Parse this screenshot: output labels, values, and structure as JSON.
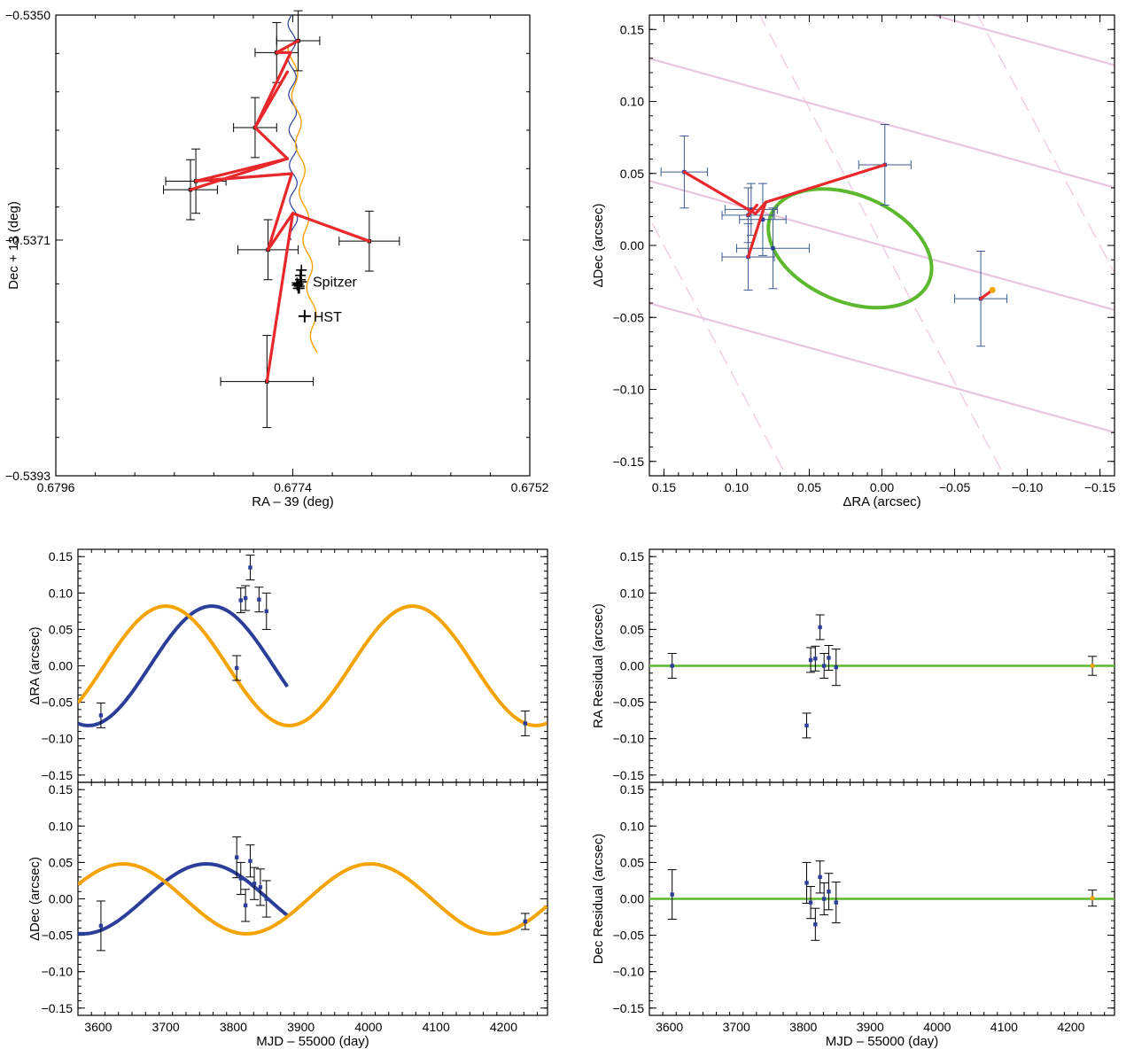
{
  "colors": {
    "red": "#e8282a",
    "blue": "#2b3f9a",
    "orange": "#f5a300",
    "green": "#5cb82e",
    "pink": "#e9c6df",
    "errbar": "#000000",
    "errbar_blue": "#3c5a8f"
  },
  "chart_data": [
    {
      "id": "sky-track",
      "type": "scatter",
      "xlabel": "RA – 39 (deg)",
      "ylabel": "Dec + 13 (deg)",
      "xlim": [
        0.6796,
        0.6752
      ],
      "ylim": [
        -0.5393,
        -0.535
      ],
      "xticks": [
        0.6796,
        0.6774,
        0.6752
      ],
      "xtick_labels": [
        "0.6796",
        "0.6774",
        "0.6752"
      ],
      "yticks": [
        -0.5393,
        -0.5371,
        -0.535
      ],
      "ytick_labels": [
        "−0.5393",
        "−0.5371",
        "−0.5350"
      ],
      "points": [
        {
          "x": 0.67755,
          "y": -0.53535,
          "xerr": 0.0002,
          "yerr": 0.00028
        },
        {
          "x": 0.67735,
          "y": -0.53524,
          "xerr": 0.0002,
          "yerr": 0.00028
        },
        {
          "x": 0.67775,
          "y": -0.53605,
          "xerr": 0.0002,
          "yerr": 0.00028
        },
        {
          "x": 0.6783,
          "y": -0.53655,
          "xerr": 0.00028,
          "yerr": 0.0003
        },
        {
          "x": 0.67835,
          "y": -0.53663,
          "xerr": 0.00025,
          "yerr": 0.00028
        },
        {
          "x": 0.67763,
          "y": -0.53719,
          "xerr": 0.00028,
          "yerr": 0.00028
        },
        {
          "x": 0.67669,
          "y": -0.53711,
          "xerr": 0.00028,
          "yerr": 0.00028
        },
        {
          "x": 0.67764,
          "y": -0.53842,
          "xerr": 0.00043,
          "yerr": 0.00043
        }
      ],
      "red_segments": [
        [
          [
            0.67755,
            -0.53535
          ],
          [
            0.67735,
            -0.53524
          ]
        ],
        [
          [
            0.67755,
            -0.53535
          ],
          [
            0.67742,
            -0.53535
          ]
        ],
        [
          [
            0.67742,
            -0.53535
          ],
          [
            0.67775,
            -0.53605
          ]
        ],
        [
          [
            0.67775,
            -0.53605
          ],
          [
            0.67745,
            -0.53553
          ]
        ],
        [
          [
            0.67775,
            -0.53605
          ],
          [
            0.67745,
            -0.53634
          ]
        ],
        [
          [
            0.67745,
            -0.53634
          ],
          [
            0.6783,
            -0.53655
          ]
        ],
        [
          [
            0.67745,
            -0.53634
          ],
          [
            0.67835,
            -0.53663
          ]
        ],
        [
          [
            0.6783,
            -0.53655
          ],
          [
            0.67741,
            -0.53648
          ]
        ],
        [
          [
            0.67741,
            -0.53648
          ],
          [
            0.67763,
            -0.53719
          ]
        ],
        [
          [
            0.67763,
            -0.53719
          ],
          [
            0.6774,
            -0.53685
          ]
        ],
        [
          [
            0.6774,
            -0.53685
          ],
          [
            0.67669,
            -0.53711
          ]
        ],
        [
          [
            0.6774,
            -0.53685
          ],
          [
            0.67764,
            -0.53842
          ]
        ]
      ],
      "spitzer_points": [
        {
          "x": 0.67733,
          "y": -0.53747
        },
        {
          "x": 0.67734,
          "y": -0.53755
        },
        {
          "x": 0.67735,
          "y": -0.53751
        },
        {
          "x": 0.67736,
          "y": -0.5375
        },
        {
          "x": 0.67734,
          "y": -0.53753
        },
        {
          "x": 0.67732,
          "y": -0.53749
        },
        {
          "x": 0.67733,
          "y": -0.53743
        },
        {
          "x": 0.67732,
          "y": -0.53738
        },
        {
          "x": 0.67735,
          "y": -0.53755
        },
        {
          "x": 0.67736,
          "y": -0.53752
        }
      ],
      "hst_point": {
        "x": 0.67729,
        "y": -0.53781
      },
      "annotations": [
        "Spitzer",
        "HST"
      ]
    },
    {
      "id": "orbit",
      "type": "scatter",
      "xlabel": "ΔRA (arcsec)",
      "ylabel": "ΔDec (arcsec)",
      "xlim": [
        0.16,
        -0.16
      ],
      "ylim": [
        -0.16,
        0.16
      ],
      "xticks": [
        0.15,
        0.1,
        0.05,
        0.0,
        -0.05,
        -0.1,
        -0.15
      ],
      "xtick_labels": [
        "0.15",
        "0.10",
        "0.05",
        "0.00",
        "−0.05",
        "−0.10",
        "−0.15"
      ],
      "yticks": [
        0.15,
        0.1,
        0.05,
        0.0,
        -0.05,
        -0.1,
        -0.15
      ],
      "ytick_labels": [
        "0.15",
        "0.10",
        "0.05",
        "0.00",
        "−0.05",
        "−0.10",
        "−0.15"
      ],
      "points": [
        {
          "x": 0.136,
          "y": 0.051,
          "xerr": 0.016,
          "yerr": 0.025
        },
        {
          "x": 0.092,
          "y": 0.021,
          "xerr": 0.018,
          "yerr": 0.019
        },
        {
          "x": 0.09,
          "y": 0.025,
          "xerr": 0.018,
          "yerr": 0.018
        },
        {
          "x": 0.082,
          "y": 0.018,
          "xerr": 0.016,
          "yerr": 0.025
        },
        {
          "x": 0.092,
          "y": -0.008,
          "xerr": 0.018,
          "yerr": 0.023
        },
        {
          "x": 0.075,
          "y": -0.002,
          "xerr": 0.025,
          "yerr": 0.028
        },
        {
          "x": -0.002,
          "y": 0.056,
          "xerr": 0.018,
          "yerr": 0.028
        },
        {
          "x": -0.068,
          "y": -0.037,
          "xerr": 0.018,
          "yerr": 0.033
        }
      ],
      "red_segments": [
        [
          [
            0.136,
            0.051
          ],
          [
            0.087,
            0.022
          ]
        ],
        [
          [
            0.087,
            0.022
          ],
          [
            0.08,
            0.03
          ]
        ],
        [
          [
            0.08,
            0.03
          ],
          [
            -0.002,
            0.056
          ]
        ],
        [
          [
            0.08,
            0.03
          ],
          [
            0.092,
            -0.008
          ]
        ],
        [
          [
            0.092,
            0.021
          ],
          [
            0.086,
            0.028
          ]
        ],
        [
          [
            -0.068,
            -0.037
          ],
          [
            -0.076,
            -0.031
          ]
        ]
      ],
      "ellipse": {
        "center": [
          0.022,
          -0.002
        ],
        "semi_axes": [
          0.059,
          0.037
        ],
        "rotation_deg": 23
      },
      "orange_point": {
        "x": -0.076,
        "y": -0.031
      },
      "pink_lines_intercepts": [
        -0.085,
        0.0,
        0.085,
        0.17
      ],
      "pink_lines_slope": 0.28
    },
    {
      "id": "ra-vs-time",
      "type": "line",
      "xlabel": "",
      "ylabel": "ΔRA (arcsec)",
      "xlim": [
        3570,
        4265
      ],
      "ylim": [
        -0.16,
        0.16
      ],
      "yticks": [
        0.15,
        0.1,
        0.05,
        0.0,
        -0.05,
        -0.1,
        -0.15
      ],
      "ytick_labels": [
        "0.15",
        "0.10",
        "0.05",
        "0.00",
        "−0.05",
        "−0.10",
        "−0.15"
      ],
      "points": [
        {
          "x": 3604,
          "y": -0.068,
          "yerr": 0.017
        },
        {
          "x": 3805,
          "y": -0.003,
          "yerr": 0.017
        },
        {
          "x": 3811,
          "y": 0.09,
          "yerr": 0.017
        },
        {
          "x": 3818,
          "y": 0.093,
          "yerr": 0.017
        },
        {
          "x": 3825,
          "y": 0.135,
          "yerr": 0.017
        },
        {
          "x": 3838,
          "y": 0.091,
          "yerr": 0.017
        },
        {
          "x": 3849,
          "y": 0.075,
          "yerr": 0.025
        },
        {
          "x": 4232,
          "y": -0.079,
          "yerr": 0.017
        }
      ],
      "series": [
        {
          "name": "blue model",
          "amplitude": 0.082,
          "period": 365.25,
          "phase_peak": 3768,
          "range": [
            3570,
            3880
          ]
        },
        {
          "name": "orange model",
          "amplitude": 0.082,
          "period": 365.25,
          "phase_peak": 3700,
          "range": [
            3570,
            4265
          ]
        }
      ]
    },
    {
      "id": "dec-vs-time",
      "type": "line",
      "xlabel": "MJD – 55000 (day)",
      "ylabel": "ΔDec (arcsec)",
      "xlim": [
        3570,
        4265
      ],
      "ylim": [
        -0.16,
        0.16
      ],
      "xticks": [
        3600,
        3700,
        3800,
        3900,
        4000,
        4100,
        4200
      ],
      "xtick_labels": [
        "3600",
        "3700",
        "3800",
        "3900",
        "4000",
        "4100",
        "4200"
      ],
      "yticks": [
        0.15,
        0.1,
        0.05,
        0.0,
        -0.05,
        -0.1,
        -0.15
      ],
      "ytick_labels": [
        "0.15",
        "0.10",
        "0.05",
        "0.00",
        "−0.05",
        "−0.10",
        "−0.15"
      ],
      "points": [
        {
          "x": 3604,
          "y": -0.037,
          "yerr": 0.034
        },
        {
          "x": 3805,
          "y": 0.057,
          "yerr": 0.028
        },
        {
          "x": 3811,
          "y": 0.028,
          "yerr": 0.022
        },
        {
          "x": 3818,
          "y": -0.009,
          "yerr": 0.022
        },
        {
          "x": 3825,
          "y": 0.052,
          "yerr": 0.022
        },
        {
          "x": 3831,
          "y": 0.021,
          "yerr": 0.022
        },
        {
          "x": 3840,
          "y": 0.016,
          "yerr": 0.025
        },
        {
          "x": 3849,
          "y": 0.0,
          "yerr": 0.025
        },
        {
          "x": 4232,
          "y": -0.031,
          "yerr": 0.011
        }
      ],
      "series": [
        {
          "name": "blue model",
          "amplitude": 0.048,
          "period": 365.25,
          "phase_peak": 3760,
          "range": [
            3570,
            3880
          ]
        },
        {
          "name": "orange model",
          "amplitude": 0.048,
          "period": 365.25,
          "phase_peak": 3637,
          "range": [
            3570,
            4265
          ]
        }
      ]
    },
    {
      "id": "ra-residual",
      "type": "scatter",
      "xlabel": "",
      "ylabel": "RA Residual (arcsec)",
      "xlim": [
        3570,
        4265
      ],
      "ylim": [
        -0.16,
        0.16
      ],
      "yticks": [
        0.15,
        0.1,
        0.05,
        0.0,
        -0.05,
        -0.1,
        -0.15
      ],
      "ytick_labels": [
        "0.15",
        "0.10",
        "0.05",
        "0.00",
        "−0.05",
        "−0.10",
        "−0.15"
      ],
      "points": [
        {
          "x": 3604,
          "y": 0.0,
          "yerr": 0.017
        },
        {
          "x": 3805,
          "y": -0.082,
          "yerr": 0.017
        },
        {
          "x": 3811,
          "y": 0.008,
          "yerr": 0.017
        },
        {
          "x": 3818,
          "y": 0.01,
          "yerr": 0.017
        },
        {
          "x": 3825,
          "y": 0.053,
          "yerr": 0.017
        },
        {
          "x": 3831,
          "y": 0.0,
          "yerr": 0.017
        },
        {
          "x": 3838,
          "y": 0.011,
          "yerr": 0.017
        },
        {
          "x": 3849,
          "y": -0.002,
          "yerr": 0.025
        },
        {
          "x": 4232,
          "y": 0.0,
          "yerr": 0.013
        }
      ],
      "zero_line": 0.0
    },
    {
      "id": "dec-residual",
      "type": "scatter",
      "xlabel": "MJD – 55000 (day)",
      "ylabel": "Dec Residual (arcsec)",
      "xlim": [
        3570,
        4265
      ],
      "ylim": [
        -0.16,
        0.16
      ],
      "xticks": [
        3600,
        3700,
        3800,
        3900,
        4000,
        4100,
        4200
      ],
      "xtick_labels": [
        "3600",
        "3700",
        "3800",
        "3900",
        "4000",
        "4100",
        "4200"
      ],
      "yticks": [
        0.15,
        0.1,
        0.05,
        0.0,
        -0.05,
        -0.1,
        -0.15
      ],
      "ytick_labels": [
        "0.15",
        "0.10",
        "0.05",
        "0.00",
        "−0.05",
        "−0.10",
        "−0.15"
      ],
      "points": [
        {
          "x": 3604,
          "y": 0.006,
          "yerr": 0.034
        },
        {
          "x": 3805,
          "y": 0.022,
          "yerr": 0.028
        },
        {
          "x": 3811,
          "y": -0.005,
          "yerr": 0.022
        },
        {
          "x": 3818,
          "y": -0.035,
          "yerr": 0.022
        },
        {
          "x": 3825,
          "y": 0.03,
          "yerr": 0.022
        },
        {
          "x": 3831,
          "y": 0.0,
          "yerr": 0.022
        },
        {
          "x": 3838,
          "y": 0.01,
          "yerr": 0.025
        },
        {
          "x": 3849,
          "y": -0.005,
          "yerr": 0.028
        },
        {
          "x": 4232,
          "y": 0.001,
          "yerr": 0.011
        }
      ],
      "zero_line": 0.0
    }
  ]
}
